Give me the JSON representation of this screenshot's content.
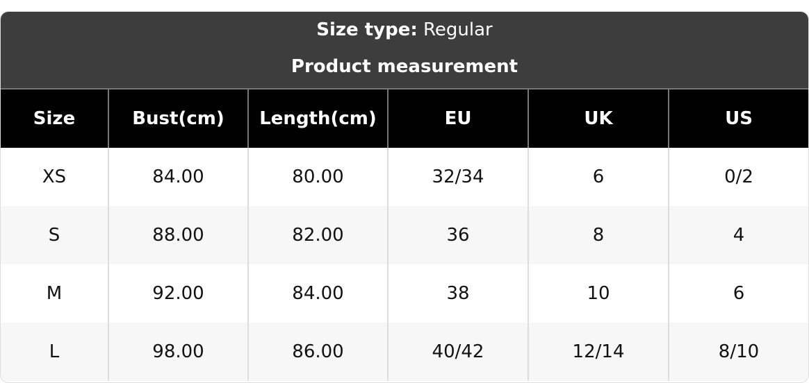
{
  "header": {
    "size_type_label": "Size type:",
    "size_type_value": "Regular",
    "subtitle": "Product measurement"
  },
  "columns": [
    "Size",
    "Bust(cm)",
    "Length(cm)",
    "EU",
    "UK",
    "US"
  ],
  "rows": [
    [
      "XS",
      "84.00",
      "80.00",
      "32/34",
      "6",
      "0/2"
    ],
    [
      "S",
      "88.00",
      "82.00",
      "36",
      "8",
      "4"
    ],
    [
      "M",
      "92.00",
      "84.00",
      "38",
      "10",
      "6"
    ],
    [
      "L",
      "98.00",
      "86.00",
      "40/42",
      "12/14",
      "8/10"
    ]
  ],
  "colors": {
    "header_bg": "#3d3d3d",
    "column_header_bg": "#000000",
    "alt_row_bg": "#f7f7f7"
  }
}
